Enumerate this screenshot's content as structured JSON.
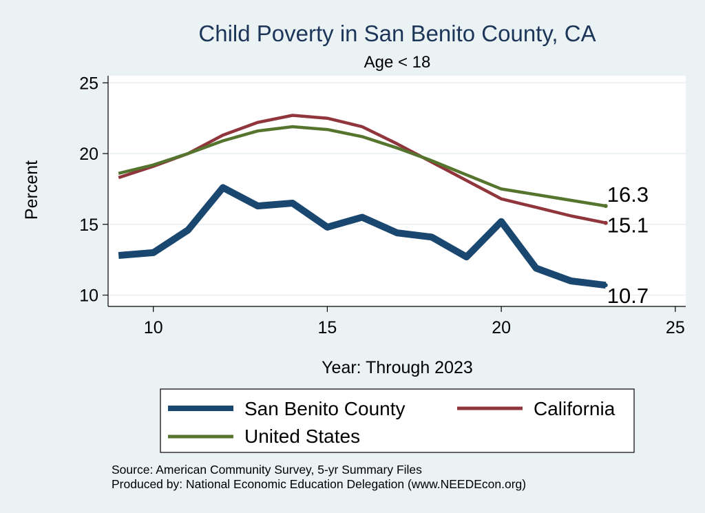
{
  "chart_data": {
    "type": "line",
    "title": "Child Poverty in San Benito County, CA",
    "subtitle": "Age < 18",
    "xlabel": "Year: Through 2023",
    "ylabel": "Percent",
    "xlim": [
      8.7,
      25.3
    ],
    "ylim": [
      9.2,
      25.5
    ],
    "xticks": [
      10,
      15,
      20,
      25
    ],
    "yticks": [
      10,
      15,
      20,
      25
    ],
    "grid": true,
    "x": [
      9,
      10,
      11,
      12,
      13,
      14,
      15,
      16,
      17,
      18,
      19,
      20,
      21,
      22,
      23
    ],
    "series": [
      {
        "name": "San Benito County",
        "color": "#1a476f",
        "values": [
          12.8,
          13.0,
          14.6,
          17.6,
          16.3,
          16.5,
          14.8,
          15.5,
          14.4,
          14.1,
          12.7,
          15.2,
          11.9,
          11.0,
          10.7
        ],
        "end_label": "10.7"
      },
      {
        "name": "California",
        "color": "#90353b",
        "values": [
          18.3,
          19.1,
          20.0,
          21.3,
          22.2,
          22.7,
          22.5,
          21.9,
          20.7,
          19.4,
          18.1,
          16.8,
          16.2,
          15.6,
          15.1
        ],
        "end_label": "15.1"
      },
      {
        "name": "United States",
        "color": "#55752f",
        "values": [
          18.6,
          19.2,
          20.0,
          20.9,
          21.6,
          21.9,
          21.7,
          21.2,
          20.4,
          19.5,
          18.5,
          17.5,
          17.1,
          16.7,
          16.3
        ],
        "end_label": "16.3"
      }
    ],
    "legend": {
      "position": "bottom",
      "entries": [
        "San Benito County",
        "California",
        "United States"
      ]
    },
    "notes": [
      "Source: American Community Survey, 5-yr Summary Files",
      "Produced by: National Economic Education Delegation (www.NEEDEcon.org)"
    ]
  }
}
